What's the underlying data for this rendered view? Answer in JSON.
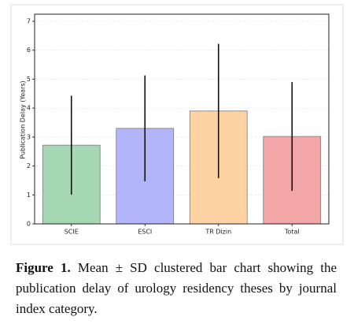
{
  "chart_data": {
    "type": "bar",
    "ylabel": "Publication Delay (Years)",
    "categories": [
      "SCIE",
      "ESCI",
      "TR Dizin",
      "Total"
    ],
    "values": [
      2.72,
      3.3,
      3.9,
      3.02
    ],
    "errors": [
      1.71,
      1.83,
      2.32,
      1.88
    ],
    "colors": [
      "#a6d8b3",
      "#b3b5fb",
      "#fdd3a4",
      "#f2a6a8"
    ],
    "ylim": [
      0,
      7
    ],
    "yticks": [
      0,
      1,
      2,
      3,
      4,
      5,
      6,
      7
    ],
    "grid": true
  },
  "caption": {
    "label": "Figure 1.",
    "text": "Mean ± SD clustered bar chart showing the publication delay of urology residency theses by journal index category."
  }
}
